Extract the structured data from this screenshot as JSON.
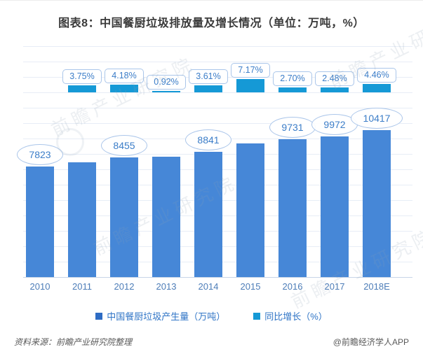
{
  "page": {
    "title": "图表8：中国餐厨垃圾排放量及增长情况（单位：万吨，%）",
    "source_note": "资料来源：前瞻产业研究院整理",
    "credit": "@前瞻经济学人APP",
    "watermark_text": "前瞻产业研究院"
  },
  "chart_data": {
    "type": "bar",
    "title": "图表8：中国餐厨垃圾排放量及增长情况（单位：万吨，%）",
    "categories": [
      "2010",
      "2011",
      "2012",
      "2013",
      "2014",
      "2015",
      "2016",
      "2017",
      "2018E"
    ],
    "series": [
      {
        "name": "中国餐厨垃圾产生量（万吨）",
        "type": "bar",
        "axis": "volume",
        "color": "#4687d7",
        "legend_marker_color": "#2e6cc4",
        "values": [
          7823,
          8116,
          8455,
          8533,
          8841,
          9475,
          9731,
          9972,
          10417
        ],
        "data_labels": [
          "7823",
          null,
          "8455",
          null,
          "8841",
          null,
          "9731",
          "9972",
          "10417"
        ]
      },
      {
        "name": "同比增长（%）",
        "type": "bar",
        "axis": "growth",
        "color": "#1599d6",
        "legend_marker_color": "#1599d6",
        "values": [
          null,
          3.75,
          4.18,
          0.92,
          3.61,
          7.17,
          2.7,
          2.48,
          4.46
        ],
        "data_labels": [
          null,
          "3.75%",
          "4.18%",
          "0.92%",
          "3.61%",
          "7.17%",
          "2.70%",
          "2.48%",
          "4.46%"
        ]
      }
    ],
    "xlabel": "",
    "ylabel": "",
    "grid": true,
    "legend_position": "bottom",
    "note": "unlabeled bar values estimated from growth rates and bar heights"
  },
  "colors": {
    "volume_bar": "#4687d7",
    "growth_bar": "#1599d6",
    "value_label_text": "#3b7dc8",
    "value_label_border": "#aac6ea",
    "axis_text": "#4d7db8",
    "gridline": "#e7edf6",
    "axis_line": "#c7d5e8",
    "title_text": "#3a3a3a",
    "legend_text": "#2f74c6",
    "footer_text": "#595959"
  }
}
